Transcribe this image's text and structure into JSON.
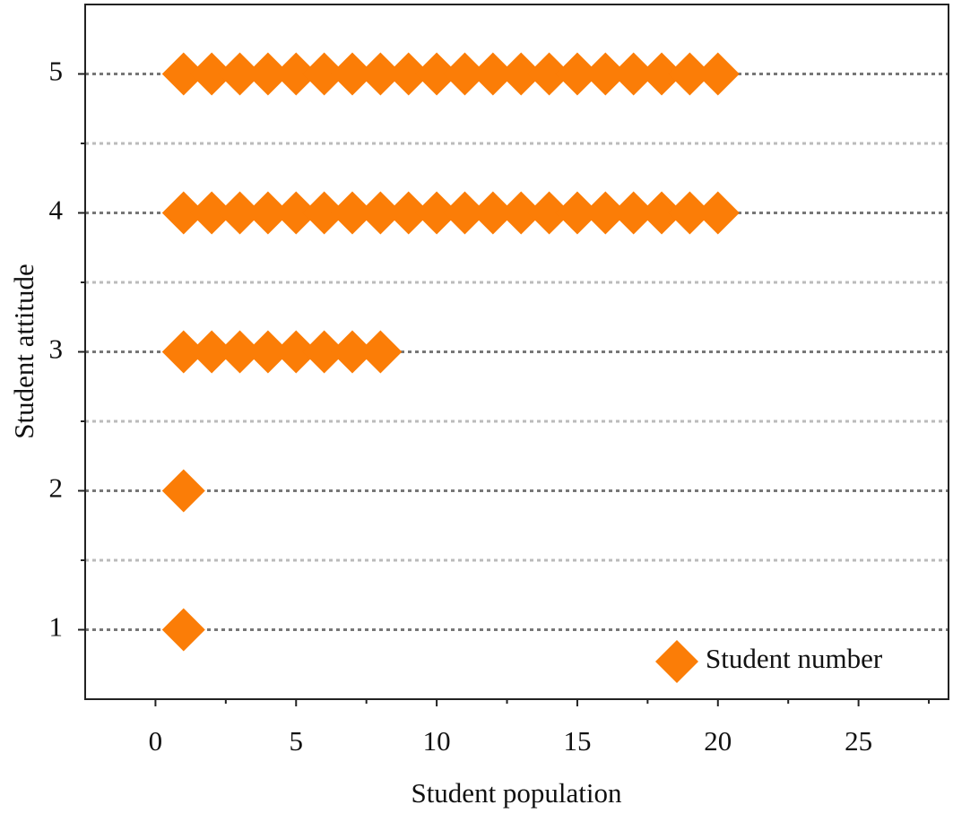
{
  "chart_data": {
    "type": "scatter",
    "xlabel": "Student population",
    "ylabel": "Student attitude",
    "xlim": [
      -2.5,
      28.2
    ],
    "xticks": [
      0,
      5,
      10,
      15,
      20,
      25
    ],
    "xminorticks": [
      2.5,
      7.5,
      12.5,
      17.5,
      22.5,
      27.5
    ],
    "ylim": [
      0.5,
      5.5
    ],
    "yticks": [
      1,
      2,
      3,
      4,
      5
    ],
    "yminorticks": [
      1.5,
      2.5,
      3.5,
      4.5
    ],
    "grid": true,
    "legend": "lower right",
    "series": [
      {
        "name": "Student number",
        "color": "#fb7d07",
        "marker": "diamond",
        "x": [
          1,
          2,
          3,
          4,
          5,
          6,
          7,
          8,
          9,
          10,
          11,
          12,
          13,
          14,
          15,
          16,
          17,
          18,
          19,
          20,
          1,
          2,
          3,
          4,
          5,
          6,
          7,
          8,
          9,
          10,
          11,
          12,
          13,
          14,
          15,
          16,
          17,
          18,
          19,
          20,
          1,
          2,
          3,
          4,
          5,
          6,
          7,
          8,
          1,
          1
        ],
        "y": [
          5,
          5,
          5,
          5,
          5,
          5,
          5,
          5,
          5,
          5,
          5,
          5,
          5,
          5,
          5,
          5,
          5,
          5,
          5,
          5,
          4,
          4,
          4,
          4,
          4,
          4,
          4,
          4,
          4,
          4,
          4,
          4,
          4,
          4,
          4,
          4,
          4,
          4,
          4,
          4,
          3,
          3,
          3,
          3,
          3,
          3,
          3,
          3,
          2,
          1
        ]
      }
    ]
  }
}
